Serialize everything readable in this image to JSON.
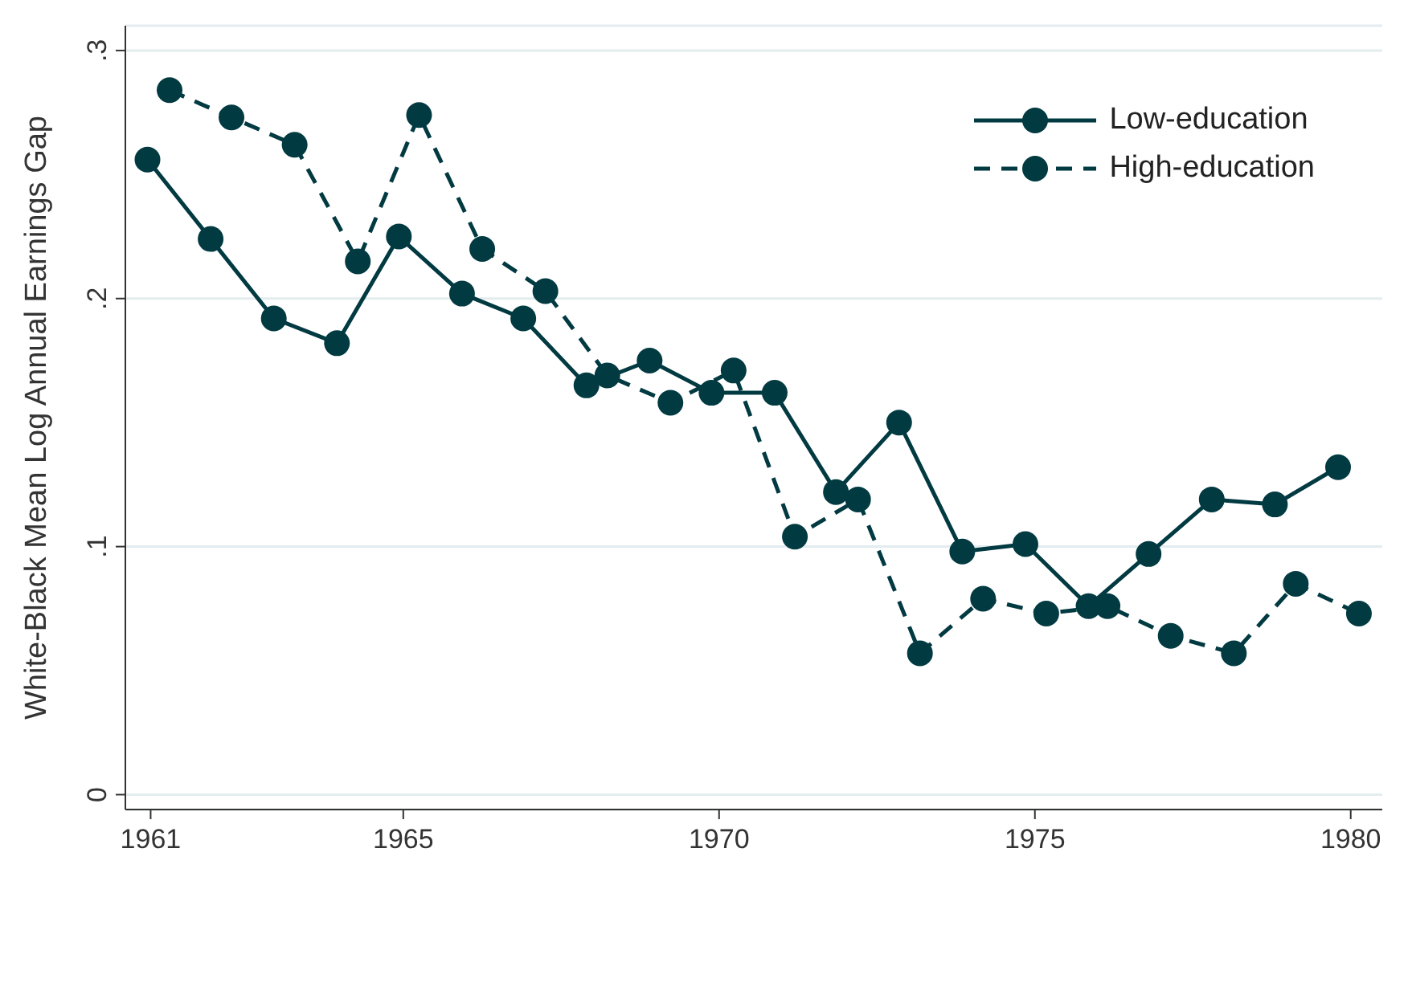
{
  "chart_data": {
    "type": "line",
    "ylabel": "White-Black Mean Log Annual Earnings Gap",
    "xlim": [
      1960.6,
      1980.5
    ],
    "xticks": [
      1961,
      1965,
      1970,
      1975,
      1980
    ],
    "ylim": [
      -0.006,
      0.31
    ],
    "yticks": [
      {
        "value": 0,
        "label": "0"
      },
      {
        "value": 0.1,
        "label": ".1"
      },
      {
        "value": 0.2,
        "label": ".2"
      },
      {
        "value": 0.3,
        "label": ".3"
      }
    ],
    "grid": "y",
    "legend": "top right",
    "marker": "circle",
    "series": [
      {
        "name": "Low-education",
        "color": "#023a42",
        "line_style": "solid",
        "x": [
          1960.95,
          1961.95,
          1962.95,
          1963.95,
          1964.93,
          1965.93,
          1966.9,
          1967.9,
          1968.9,
          1969.88,
          1970.88,
          1971.85,
          1972.85,
          1973.85,
          1974.85,
          1975.85,
          1976.8,
          1977.8,
          1978.8,
          1979.8
        ],
        "values": [
          0.256,
          0.224,
          0.192,
          0.182,
          0.225,
          0.202,
          0.192,
          0.165,
          0.175,
          0.162,
          0.162,
          0.122,
          0.15,
          0.098,
          0.101,
          0.076,
          0.097,
          0.119,
          0.117,
          0.132
        ]
      },
      {
        "name": "High-education",
        "color": "#023a42",
        "line_style": "dashed",
        "x": [
          1961.3,
          1962.28,
          1963.28,
          1964.28,
          1965.25,
          1966.25,
          1967.25,
          1968.23,
          1969.23,
          1970.23,
          1971.2,
          1972.2,
          1973.18,
          1974.18,
          1975.18,
          1976.15,
          1977.15,
          1978.15,
          1979.13,
          1980.13
        ],
        "values": [
          0.284,
          0.273,
          0.262,
          0.215,
          0.274,
          0.22,
          0.203,
          0.169,
          0.158,
          0.171,
          0.104,
          0.119,
          0.057,
          0.079,
          0.073,
          0.076,
          0.064,
          0.057,
          0.085,
          0.073
        ]
      }
    ]
  }
}
